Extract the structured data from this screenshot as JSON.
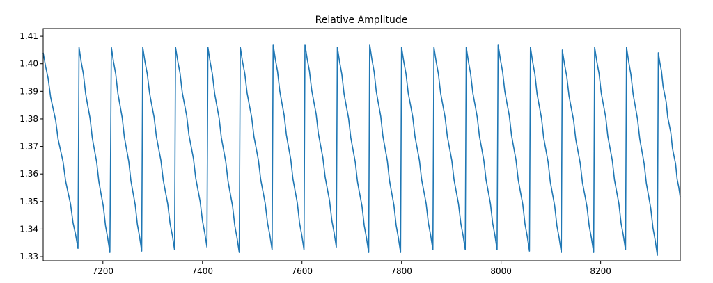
{
  "chart_data": {
    "type": "line",
    "title": "Relative Amplitude",
    "xlabel": "",
    "ylabel": "",
    "xlim": [
      7080,
      8360
    ],
    "ylim": [
      1.3285,
      1.4128
    ],
    "x_ticks": [
      7200,
      7400,
      7600,
      7800,
      8000,
      8200
    ],
    "x_tick_labels": [
      "7200",
      "7400",
      "7600",
      "7800",
      "8000",
      "8200"
    ],
    "y_ticks": [
      1.33,
      1.34,
      1.35,
      1.36,
      1.37,
      1.38,
      1.39,
      1.4,
      1.41
    ],
    "y_tick_labels": [
      "1.33",
      "1.34",
      "1.35",
      "1.36",
      "1.37",
      "1.38",
      "1.39",
      "1.40",
      "1.41"
    ],
    "grid": false,
    "legend": "none",
    "line_color": "#1f77b4",
    "series": [
      {
        "peaks": [
          [
            7080,
            1.404
          ],
          [
            7152,
            1.406
          ],
          [
            7217,
            1.406
          ],
          [
            7280,
            1.406
          ],
          [
            7346,
            1.406
          ],
          [
            7411,
            1.406
          ],
          [
            7476,
            1.406
          ],
          [
            7542,
            1.407
          ],
          [
            7606,
            1.407
          ],
          [
            7671,
            1.406
          ],
          [
            7736,
            1.407
          ],
          [
            7800,
            1.406
          ],
          [
            7865,
            1.406
          ],
          [
            7930,
            1.406
          ],
          [
            7994,
            1.407
          ],
          [
            8059,
            1.406
          ],
          [
            8123,
            1.405
          ],
          [
            8188,
            1.406
          ],
          [
            8252,
            1.406
          ],
          [
            8316,
            1.404
          ]
        ],
        "troughs": [
          [
            7150,
            1.333
          ],
          [
            7214,
            1.3315
          ],
          [
            7278,
            1.332
          ],
          [
            7344,
            1.3325
          ],
          [
            7409,
            1.3335
          ],
          [
            7474,
            1.3315
          ],
          [
            7540,
            1.3325
          ],
          [
            7604,
            1.3325
          ],
          [
            7669,
            1.3335
          ],
          [
            7734,
            1.3315
          ],
          [
            7798,
            1.3315
          ],
          [
            7863,
            1.3325
          ],
          [
            7928,
            1.3325
          ],
          [
            7992,
            1.3325
          ],
          [
            8057,
            1.332
          ],
          [
            8121,
            1.3315
          ],
          [
            8186,
            1.3315
          ],
          [
            8250,
            1.3325
          ],
          [
            8314,
            1.3305
          ],
          [
            8360,
            1.3515
          ]
        ]
      }
    ]
  }
}
